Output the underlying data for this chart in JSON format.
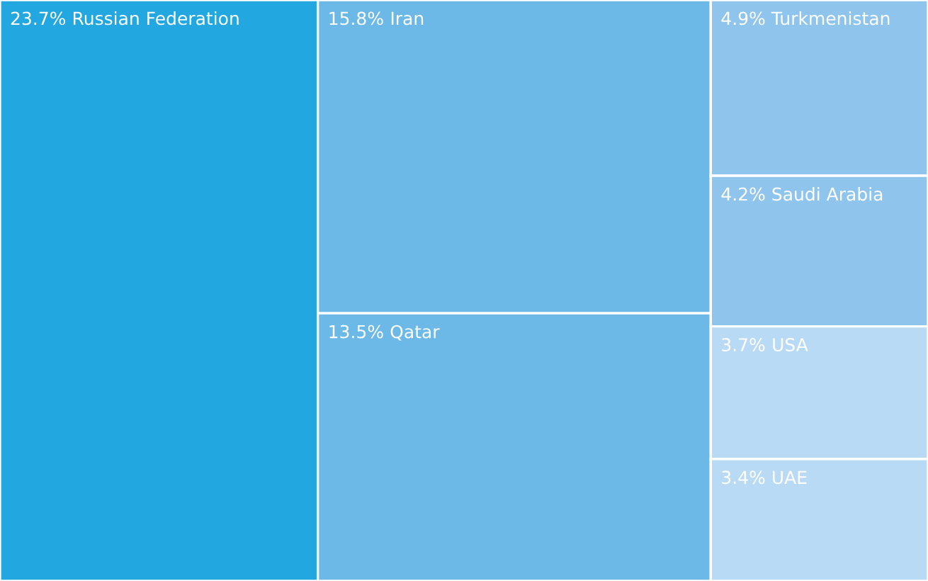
{
  "chart_data": {
    "type": "other",
    "categories": [
      "Russian Federation",
      "Iran",
      "Qatar",
      "Turkmenistan",
      "Saudi Arabia",
      "USA",
      "UAE"
    ],
    "values": [
      23.7,
      15.8,
      13.5,
      4.9,
      4.2,
      3.7,
      3.4
    ],
    "value_labels": [
      "23.7%",
      "15.8%",
      "13.5%",
      "4.9%",
      "4.2%",
      "3.7%",
      "3.4%"
    ],
    "colors": [
      "#22a7e0",
      "#6cb8e6",
      "#6cb8e6",
      "#8fc5ec",
      "#8fc5ec",
      "#b9daf4",
      "#b9daf4"
    ]
  }
}
